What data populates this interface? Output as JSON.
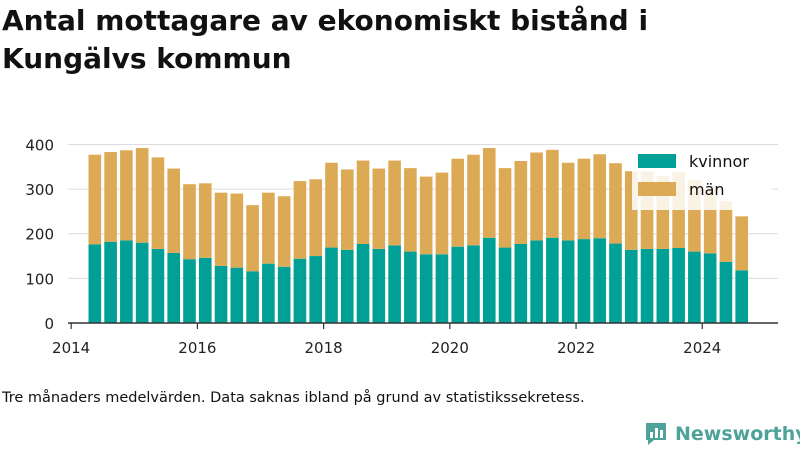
{
  "title": "Antal mottagare av ekonomiskt bistånd i Kungälvs kommun",
  "note": "Tre månaders medelvärden. Data saknas ibland på grund av statistikssekretess.",
  "brand": {
    "name": "Newsworthy",
    "color": "#4da39a"
  },
  "colors": {
    "kvinnor": "#00a096",
    "man": "#dcaa55",
    "grid": "#dcdcdc",
    "axis": "#333333"
  },
  "chart_data": {
    "type": "bar",
    "stacked": true,
    "x_ticks": [
      2014,
      2016,
      2018,
      2020,
      2022,
      2024
    ],
    "y_ticks": [
      0,
      100,
      200,
      300,
      400
    ],
    "ylim": [
      0,
      410
    ],
    "xlim": [
      2013.95,
      2025.2
    ],
    "grid": true,
    "legend_position": "top-right",
    "x": [
      2014.375,
      2014.625,
      2014.875,
      2015.125,
      2015.375,
      2015.625,
      2015.875,
      2016.125,
      2016.375,
      2016.625,
      2016.875,
      2017.125,
      2017.375,
      2017.625,
      2017.875,
      2018.125,
      2018.375,
      2018.625,
      2018.875,
      2019.125,
      2019.375,
      2019.625,
      2019.875,
      2020.125,
      2020.375,
      2020.625,
      2020.875,
      2021.125,
      2021.375,
      2021.625,
      2021.875,
      2022.125,
      2022.375,
      2022.625,
      2022.875,
      2023.125,
      2023.375,
      2023.625,
      2023.875,
      2024.125,
      2024.375,
      2024.625
    ],
    "series": [
      {
        "name": "kvinnor",
        "color": "#00a096",
        "values": [
          176,
          182,
          185,
          180,
          166,
          157,
          143,
          146,
          128,
          124,
          116,
          133,
          126,
          144,
          150,
          169,
          164,
          177,
          166,
          174,
          160,
          154,
          154,
          171,
          174,
          191,
          169,
          177,
          185,
          191,
          185,
          188,
          190,
          178,
          164,
          166,
          166,
          168,
          160,
          156,
          137,
          118
        ]
      },
      {
        "name": "män",
        "color": "#dcaa55",
        "values": [
          201,
          201,
          202,
          212,
          205,
          189,
          168,
          167,
          164,
          166,
          148,
          159,
          158,
          174,
          172,
          190,
          180,
          187,
          180,
          190,
          187,
          174,
          183,
          197,
          203,
          201,
          178,
          186,
          197,
          197,
          174,
          180,
          188,
          180,
          176,
          174,
          164,
          170,
          160,
          146,
          136,
          121
        ]
      }
    ]
  }
}
